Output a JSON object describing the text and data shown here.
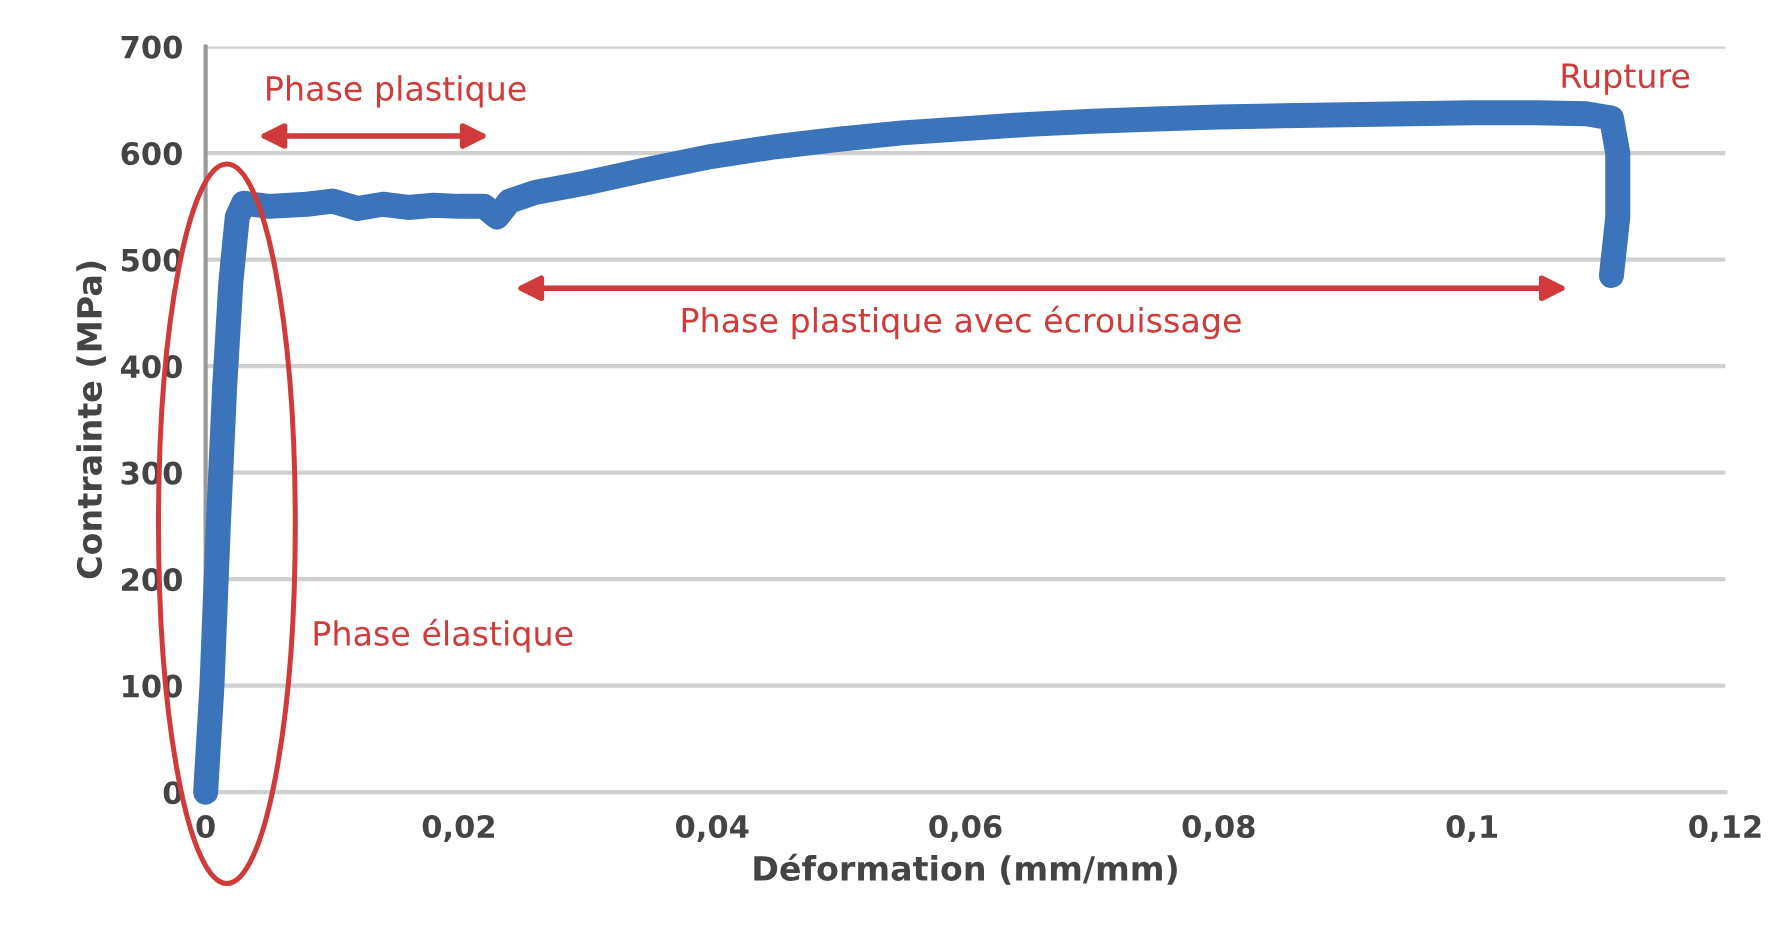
{
  "chart_data": {
    "type": "line",
    "xlabel": "Déformation (mm/mm)",
    "ylabel": "Contrainte (MPa)",
    "x": [
      0,
      0.0005,
      0.001,
      0.0015,
      0.002,
      0.0025,
      0.003,
      0.005,
      0.008,
      0.01,
      0.012,
      0.014,
      0.016,
      0.018,
      0.02,
      0.022,
      0.023,
      0.024,
      0.026,
      0.03,
      0.035,
      0.04,
      0.045,
      0.05,
      0.055,
      0.06,
      0.065,
      0.07,
      0.075,
      0.08,
      0.085,
      0.09,
      0.095,
      0.1,
      0.105,
      0.109,
      0.111,
      0.1115,
      0.1115,
      0.111
    ],
    "series": [
      {
        "color": "#3b74ba",
        "values": [
          0,
          100,
          250,
          380,
          480,
          540,
          553,
          550,
          552,
          555,
          548,
          552,
          549,
          551,
          550,
          550,
          540,
          555,
          563,
          572,
          585,
          597,
          606,
          613,
          619,
          623,
          627,
          630,
          632,
          634,
          635,
          636,
          637,
          638,
          638,
          637,
          633,
          600,
          540,
          485
        ]
      }
    ],
    "xlim": [
      0,
      0.12
    ],
    "xticks": [
      0,
      {
        "value": 0.02,
        "label": "0,02"
      },
      {
        "value": 0.04,
        "label": "0,04"
      },
      {
        "value": 0.06,
        "label": "0,06"
      },
      {
        "value": 0.08,
        "label": "0,08"
      },
      {
        "value": 0.1,
        "label": "0,1"
      },
      {
        "value": 0.12,
        "label": "0,12"
      }
    ],
    "ylim": [
      0,
      700
    ],
    "yticks": [
      0,
      100,
      200,
      300,
      400,
      500,
      600,
      700
    ],
    "grid": "y",
    "line_style": "solid",
    "annotations": [
      "Phase plastique",
      "Phase plastique avec écrouissage",
      "Rupture",
      "Phase élastique"
    ]
  }
}
